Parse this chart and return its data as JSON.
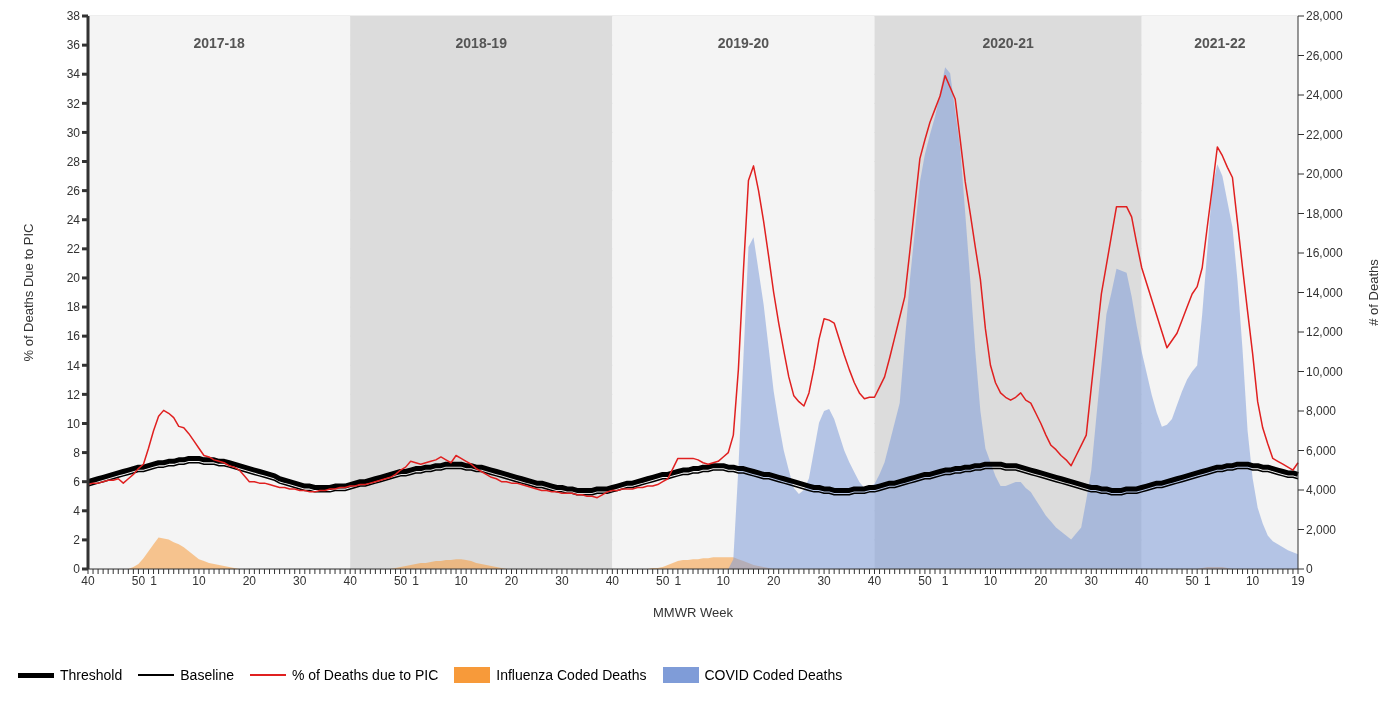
{
  "chart_data": {
    "type": "line",
    "xlabel": "MMWR Week",
    "ylabel": "% of Deaths Due to PIC",
    "y2label": "# of Deaths",
    "annotations": [
      "2017-18",
      "2018-19",
      "2019-20",
      "2020-21",
      "2021-22"
    ],
    "categories": [
      "40",
      null,
      null,
      null,
      null,
      null,
      null,
      null,
      null,
      null,
      "50",
      null,
      null,
      "1",
      null,
      null,
      null,
      null,
      null,
      null,
      null,
      null,
      "10",
      null,
      null,
      null,
      null,
      null,
      null,
      null,
      null,
      null,
      "20",
      null,
      null,
      null,
      null,
      null,
      null,
      null,
      null,
      null,
      "30",
      null,
      null,
      null,
      null,
      null,
      null,
      null,
      null,
      null,
      "40",
      null,
      null,
      null,
      null,
      null,
      null,
      null,
      null,
      null,
      "50",
      null,
      null,
      "1",
      null,
      null,
      null,
      null,
      null,
      null,
      null,
      null,
      "10",
      null,
      null,
      null,
      null,
      null,
      null,
      null,
      null,
      null,
      "20",
      null,
      null,
      null,
      null,
      null,
      null,
      null,
      null,
      null,
      "30",
      null,
      null,
      null,
      null,
      null,
      null,
      null,
      null,
      null,
      "40",
      null,
      null,
      null,
      null,
      null,
      null,
      null,
      null,
      null,
      "50",
      null,
      null,
      "1",
      null,
      null,
      null,
      null,
      null,
      null,
      null,
      null,
      "10",
      null,
      null,
      null,
      null,
      null,
      null,
      null,
      null,
      null,
      "20",
      null,
      null,
      null,
      null,
      null,
      null,
      null,
      null,
      null,
      "30",
      null,
      null,
      null,
      null,
      null,
      null,
      null,
      null,
      null,
      "40",
      null,
      null,
      null,
      null,
      null,
      null,
      null,
      null,
      null,
      "50",
      null,
      null,
      null,
      "1",
      null,
      null,
      null,
      null,
      null,
      null,
      null,
      null,
      "10",
      null,
      null,
      null,
      null,
      null,
      null,
      null,
      null,
      null,
      "20",
      null,
      null,
      null,
      null,
      null,
      null,
      null,
      null,
      null,
      "30",
      null,
      null,
      null,
      null,
      null,
      null,
      null,
      null,
      null,
      "40",
      null,
      null,
      null,
      null,
      null,
      null,
      null,
      null,
      null,
      "50",
      null,
      null,
      "1",
      null,
      null,
      null,
      null,
      null,
      null,
      null,
      null,
      "10",
      null,
      null,
      null,
      null,
      null,
      null,
      null,
      null,
      "19"
    ],
    "ylim": [
      0,
      38
    ],
    "yticks": [
      0,
      2,
      4,
      6,
      8,
      10,
      12,
      14,
      16,
      18,
      20,
      22,
      24,
      26,
      28,
      30,
      32,
      34,
      36,
      38
    ],
    "y2lim": [
      0,
      28000
    ],
    "y2ticks": [
      0,
      {
        "value": 2000,
        "label": "2,000"
      },
      {
        "value": 4000,
        "label": "4,000"
      },
      {
        "value": 6000,
        "label": "6,000"
      },
      {
        "value": 8000,
        "label": "8,000"
      },
      {
        "value": 10000,
        "label": "10,000"
      },
      {
        "value": 12000,
        "label": "12,000"
      },
      {
        "value": 14000,
        "label": "14,000"
      },
      {
        "value": 16000,
        "label": "16,000"
      },
      {
        "value": 18000,
        "label": "18,000"
      },
      {
        "value": 20000,
        "label": "20,000"
      },
      {
        "value": 22000,
        "label": "22,000"
      },
      {
        "value": 24000,
        "label": "24,000"
      },
      {
        "value": 26000,
        "label": "26,000"
      },
      {
        "value": 28000,
        "label": "28,000"
      }
    ],
    "grid": "y",
    "legend": "bottom",
    "series": [
      {
        "name": "Threshold",
        "type": "line",
        "color": "#000000",
        "values": [
          6.0,
          6.1,
          6.2,
          6.3,
          6.4,
          6.5,
          6.6,
          6.7,
          6.8,
          6.9,
          7.0,
          7.0,
          7.1,
          7.2,
          7.3,
          7.3,
          7.4,
          7.4,
          7.5,
          7.5,
          7.6,
          7.6,
          7.6,
          7.5,
          7.5,
          7.5,
          7.4,
          7.4,
          7.3,
          7.2,
          7.1,
          7.0,
          6.9,
          6.8,
          6.7,
          6.6,
          6.5,
          6.4,
          6.2,
          6.1,
          6.0,
          5.9,
          5.8,
          5.7,
          5.7,
          5.6,
          5.6,
          5.6,
          5.6,
          5.7,
          5.7,
          5.7,
          5.8,
          5.9,
          6.0,
          6.0,
          6.1,
          6.2,
          6.3,
          6.4,
          6.5,
          6.6,
          6.7,
          6.7,
          6.8,
          6.9,
          6.9,
          7.0,
          7.0,
          7.1,
          7.1,
          7.2,
          7.2,
          7.2,
          7.2,
          7.1,
          7.1,
          7.0,
          7.0,
          6.9,
          6.8,
          6.7,
          6.6,
          6.5,
          6.4,
          6.3,
          6.2,
          6.1,
          6.0,
          5.9,
          5.9,
          5.8,
          5.7,
          5.6,
          5.6,
          5.5,
          5.5,
          5.4,
          5.4,
          5.4,
          5.4,
          5.5,
          5.5,
          5.5,
          5.6,
          5.7,
          5.8,
          5.9,
          5.9,
          6.0,
          6.1,
          6.2,
          6.3,
          6.4,
          6.5,
          6.5,
          6.6,
          6.7,
          6.8,
          6.8,
          6.9,
          6.9,
          7.0,
          7.0,
          7.1,
          7.1,
          7.1,
          7.0,
          7.0,
          6.9,
          6.9,
          6.8,
          6.7,
          6.6,
          6.5,
          6.5,
          6.4,
          6.3,
          6.2,
          6.1,
          6.0,
          5.9,
          5.8,
          5.7,
          5.6,
          5.6,
          5.5,
          5.5,
          5.4,
          5.4,
          5.4,
          5.4,
          5.5,
          5.5,
          5.5,
          5.6,
          5.6,
          5.7,
          5.8,
          5.9,
          5.9,
          6.0,
          6.1,
          6.2,
          6.3,
          6.4,
          6.5,
          6.5,
          6.6,
          6.7,
          6.8,
          6.8,
          6.9,
          6.9,
          7.0,
          7.0,
          7.1,
          7.1,
          7.2,
          7.2,
          7.2,
          7.2,
          7.1,
          7.1,
          7.1,
          7.0,
          6.9,
          6.8,
          6.7,
          6.6,
          6.5,
          6.4,
          6.3,
          6.2,
          6.1,
          6.0,
          5.9,
          5.8,
          5.7,
          5.6,
          5.6,
          5.5,
          5.5,
          5.4,
          5.4,
          5.4,
          5.5,
          5.5,
          5.5,
          5.6,
          5.7,
          5.8,
          5.9,
          5.9,
          6.0,
          6.1,
          6.2,
          6.3,
          6.4,
          6.5,
          6.6,
          6.7,
          6.8,
          6.9,
          7.0,
          7.0,
          7.1,
          7.1,
          7.2,
          7.2,
          7.2,
          7.1,
          7.1,
          7.0,
          7.0,
          6.9,
          6.8,
          6.7,
          6.6,
          6.6,
          6.5
        ]
      },
      {
        "name": "Baseline",
        "type": "line",
        "color": "#000000",
        "values": [
          5.7,
          5.8,
          5.9,
          6.0,
          6.1,
          6.2,
          6.3,
          6.4,
          6.5,
          6.6,
          6.7,
          6.7,
          6.8,
          6.9,
          7.0,
          7.0,
          7.1,
          7.1,
          7.2,
          7.2,
          7.3,
          7.3,
          7.3,
          7.2,
          7.2,
          7.2,
          7.1,
          7.1,
          7.0,
          6.9,
          6.8,
          6.7,
          6.6,
          6.5,
          6.4,
          6.3,
          6.2,
          6.1,
          5.9,
          5.8,
          5.7,
          5.6,
          5.5,
          5.4,
          5.4,
          5.3,
          5.3,
          5.3,
          5.3,
          5.4,
          5.4,
          5.4,
          5.5,
          5.6,
          5.7,
          5.7,
          5.8,
          5.9,
          6.0,
          6.1,
          6.2,
          6.3,
          6.4,
          6.4,
          6.5,
          6.6,
          6.6,
          6.7,
          6.7,
          6.8,
          6.8,
          6.9,
          6.9,
          6.9,
          6.9,
          6.8,
          6.8,
          6.7,
          6.7,
          6.6,
          6.5,
          6.4,
          6.3,
          6.2,
          6.1,
          6.0,
          5.9,
          5.8,
          5.7,
          5.6,
          5.6,
          5.5,
          5.4,
          5.3,
          5.3,
          5.2,
          5.2,
          5.1,
          5.1,
          5.1,
          5.1,
          5.2,
          5.2,
          5.2,
          5.3,
          5.4,
          5.5,
          5.6,
          5.6,
          5.7,
          5.8,
          5.9,
          6.0,
          6.1,
          6.2,
          6.2,
          6.3,
          6.4,
          6.5,
          6.5,
          6.6,
          6.6,
          6.7,
          6.7,
          6.8,
          6.8,
          6.8,
          6.7,
          6.7,
          6.6,
          6.6,
          6.5,
          6.4,
          6.3,
          6.2,
          6.2,
          6.1,
          6.0,
          5.9,
          5.8,
          5.7,
          5.6,
          5.5,
          5.4,
          5.3,
          5.3,
          5.2,
          5.2,
          5.1,
          5.1,
          5.1,
          5.1,
          5.2,
          5.2,
          5.2,
          5.3,
          5.3,
          5.4,
          5.5,
          5.6,
          5.6,
          5.7,
          5.8,
          5.9,
          6.0,
          6.1,
          6.2,
          6.2,
          6.3,
          6.4,
          6.5,
          6.5,
          6.6,
          6.6,
          6.7,
          6.7,
          6.8,
          6.8,
          6.9,
          6.9,
          6.9,
          6.9,
          6.8,
          6.8,
          6.8,
          6.7,
          6.6,
          6.5,
          6.4,
          6.3,
          6.2,
          6.1,
          6.0,
          5.9,
          5.8,
          5.7,
          5.6,
          5.5,
          5.4,
          5.3,
          5.3,
          5.2,
          5.2,
          5.1,
          5.1,
          5.1,
          5.2,
          5.2,
          5.2,
          5.3,
          5.4,
          5.5,
          5.6,
          5.6,
          5.7,
          5.8,
          5.9,
          6.0,
          6.1,
          6.2,
          6.3,
          6.4,
          6.5,
          6.6,
          6.7,
          6.7,
          6.8,
          6.8,
          6.9,
          6.9,
          6.9,
          6.8,
          6.8,
          6.7,
          6.7,
          6.6,
          6.5,
          6.4,
          6.3,
          6.3,
          6.2
        ]
      },
      {
        "name": "% of Deaths due to PIC",
        "type": "line",
        "color": "#e02020",
        "values": [
          5.8,
          5.9,
          5.9,
          6.0,
          6.1,
          6.1,
          6.2,
          5.9,
          6.2,
          6.5,
          6.9,
          7.2,
          8.3,
          9.5,
          10.5,
          10.9,
          10.7,
          10.4,
          9.8,
          9.7,
          9.3,
          8.8,
          8.3,
          7.8,
          7.7,
          7.5,
          7.4,
          7.3,
          7.1,
          7.0,
          6.8,
          6.4,
          6.0,
          6.0,
          5.9,
          5.9,
          5.8,
          5.7,
          5.6,
          5.6,
          5.5,
          5.5,
          5.4,
          5.4,
          5.3,
          5.3,
          5.4,
          5.4,
          5.5,
          5.5,
          5.6,
          5.6,
          5.7,
          5.7,
          5.8,
          5.8,
          5.9,
          6.0,
          6.1,
          6.2,
          6.3,
          6.5,
          6.8,
          7.0,
          7.4,
          7.3,
          7.2,
          7.3,
          7.4,
          7.5,
          7.7,
          7.5,
          7.3,
          7.8,
          7.6,
          7.4,
          7.2,
          6.9,
          6.7,
          6.5,
          6.3,
          6.2,
          6.0,
          6.0,
          5.9,
          5.9,
          5.8,
          5.7,
          5.6,
          5.5,
          5.4,
          5.4,
          5.3,
          5.3,
          5.2,
          5.2,
          5.2,
          5.1,
          5.1,
          5.0,
          5.0,
          4.9,
          5.1,
          5.3,
          5.4,
          5.4,
          5.5,
          5.5,
          5.5,
          5.6,
          5.6,
          5.7,
          5.7,
          5.8,
          6.0,
          6.2,
          6.9,
          7.6,
          7.6,
          7.6,
          7.6,
          7.5,
          7.3,
          7.2,
          7.3,
          7.4,
          7.7,
          8.0,
          9.2,
          13.7,
          20.5,
          26.7,
          27.7,
          26.0,
          23.9,
          21.5,
          19.0,
          16.9,
          15.0,
          13.2,
          11.9,
          11.5,
          11.2,
          12.1,
          13.8,
          15.8,
          17.2,
          17.1,
          16.9,
          15.8,
          14.7,
          13.7,
          12.8,
          12.1,
          11.7,
          11.8,
          11.8,
          12.5,
          13.2,
          14.5,
          15.9,
          17.3,
          18.7,
          21.8,
          25.0,
          28.2,
          29.5,
          30.7,
          31.6,
          32.5,
          33.9,
          33.1,
          32.3,
          29.5,
          26.6,
          24.4,
          22.1,
          19.9,
          16.5,
          14.0,
          12.8,
          12.1,
          11.8,
          11.6,
          11.8,
          12.1,
          11.6,
          11.4,
          10.7,
          10.0,
          9.2,
          8.5,
          8.2,
          7.8,
          7.5,
          7.1,
          7.8,
          8.5,
          9.2,
          12.5,
          15.7,
          18.9,
          20.9,
          22.9,
          24.9,
          24.9,
          24.9,
          24.2,
          22.4,
          20.7,
          19.6,
          18.5,
          17.4,
          16.3,
          15.2,
          15.7,
          16.2,
          17.1,
          18.0,
          18.9,
          19.4,
          20.7,
          23.5,
          26.2,
          29.0,
          28.4,
          27.6,
          26.9,
          23.8,
          20.7,
          17.7,
          14.8,
          11.5,
          9.7,
          8.6,
          7.6,
          7.4,
          7.2,
          7.0,
          6.8,
          7.3
        ]
      },
      {
        "name": "Influenza Coded Deaths",
        "type": "area",
        "axis": "y2",
        "color": "#f79a3a",
        "values": [
          0,
          0,
          0,
          0,
          0,
          0,
          0,
          0,
          0,
          100,
          250,
          550,
          900,
          1250,
          1600,
          1550,
          1500,
          1350,
          1250,
          1100,
          900,
          700,
          500,
          400,
          300,
          250,
          200,
          150,
          100,
          50,
          0,
          0,
          0,
          0,
          0,
          0,
          0,
          0,
          0,
          0,
          0,
          0,
          0,
          0,
          0,
          0,
          0,
          0,
          0,
          0,
          0,
          0,
          0,
          0,
          0,
          0,
          0,
          0,
          0,
          0,
          0,
          50,
          100,
          150,
          200,
          250,
          300,
          300,
          350,
          400,
          400,
          450,
          450,
          500,
          500,
          450,
          400,
          300,
          250,
          200,
          150,
          100,
          50,
          0,
          0,
          0,
          0,
          0,
          0,
          0,
          0,
          0,
          0,
          0,
          0,
          0,
          0,
          0,
          0,
          0,
          0,
          0,
          0,
          0,
          0,
          0,
          0,
          0,
          0,
          0,
          0,
          0,
          50,
          50,
          100,
          200,
          300,
          400,
          450,
          450,
          500,
          500,
          550,
          550,
          600,
          600,
          600,
          600,
          600,
          500,
          400,
          300,
          200,
          150,
          100,
          50,
          0,
          0,
          0,
          0,
          0,
          0,
          0,
          0,
          0,
          0,
          0,
          0,
          0,
          0,
          0,
          0,
          0,
          0,
          0,
          0,
          0,
          0,
          0,
          0,
          0,
          0,
          0,
          0,
          0,
          0,
          0,
          0,
          0,
          0,
          0,
          0,
          0,
          0,
          0,
          0,
          0,
          0,
          0,
          0,
          0,
          0,
          0,
          0,
          0,
          0,
          0,
          0,
          0,
          0,
          0,
          0,
          0,
          0,
          0,
          0,
          0,
          0,
          0,
          0,
          0,
          0,
          0,
          0,
          0,
          0,
          0,
          0,
          0,
          0,
          0,
          0,
          0,
          0,
          0,
          0,
          0,
          0,
          0,
          0,
          0,
          50,
          100,
          100,
          100,
          100,
          50,
          0,
          0,
          0,
          0,
          0,
          0,
          0,
          0,
          0,
          0,
          0,
          0,
          0,
          0
        ]
      },
      {
        "name": "COVID Coded Deaths",
        "type": "area",
        "axis": "y2",
        "color": "#7f9cd8",
        "values": [
          null,
          null,
          null,
          null,
          null,
          null,
          null,
          null,
          null,
          null,
          null,
          null,
          null,
          null,
          null,
          null,
          null,
          null,
          null,
          null,
          null,
          null,
          null,
          null,
          null,
          null,
          null,
          null,
          null,
          null,
          null,
          null,
          null,
          null,
          null,
          null,
          null,
          null,
          null,
          null,
          null,
          null,
          null,
          null,
          null,
          null,
          null,
          null,
          null,
          null,
          null,
          null,
          null,
          null,
          null,
          null,
          null,
          null,
          null,
          null,
          null,
          null,
          null,
          null,
          null,
          null,
          null,
          null,
          null,
          null,
          null,
          null,
          null,
          null,
          null,
          null,
          null,
          null,
          null,
          null,
          null,
          null,
          null,
          null,
          null,
          null,
          null,
          null,
          null,
          null,
          null,
          null,
          null,
          null,
          null,
          null,
          null,
          null,
          null,
          null,
          null,
          null,
          null,
          null,
          null,
          null,
          null,
          null,
          null,
          null,
          null,
          null,
          null,
          null,
          null,
          null,
          null,
          null,
          null,
          null,
          null,
          null,
          null,
          null,
          null,
          null,
          null,
          0,
          500,
          5100,
          10700,
          16300,
          16800,
          15100,
          13400,
          11200,
          9000,
          7400,
          6000,
          5000,
          4100,
          3800,
          4000,
          4600,
          6000,
          7400,
          8000,
          8100,
          7600,
          6800,
          6000,
          5400,
          4900,
          4400,
          4100,
          4200,
          4300,
          4800,
          5400,
          6400,
          7400,
          8400,
          11500,
          14600,
          17100,
          19600,
          21000,
          22000,
          22900,
          24100,
          25400,
          25100,
          23200,
          21300,
          18000,
          14600,
          11000,
          8000,
          6100,
          5400,
          4700,
          4200,
          4200,
          4300,
          4400,
          4400,
          4100,
          3900,
          3500,
          3100,
          2700,
          2400,
          2100,
          1900,
          1700,
          1500,
          1800,
          2100,
          3500,
          5000,
          7700,
          10300,
          12900,
          14000,
          15200,
          15100,
          15000,
          13800,
          12300,
          11000,
          9900,
          8800,
          7900,
          7200,
          7300,
          7600,
          8300,
          9000,
          9600,
          10000,
          10300,
          12900,
          16100,
          19300,
          20500,
          19900,
          18600,
          17300,
          14600,
          11100,
          7000,
          4600,
          3100,
          2300,
          1700,
          1400,
          1250,
          1100,
          950,
          850,
          750
        ]
      }
    ]
  }
}
